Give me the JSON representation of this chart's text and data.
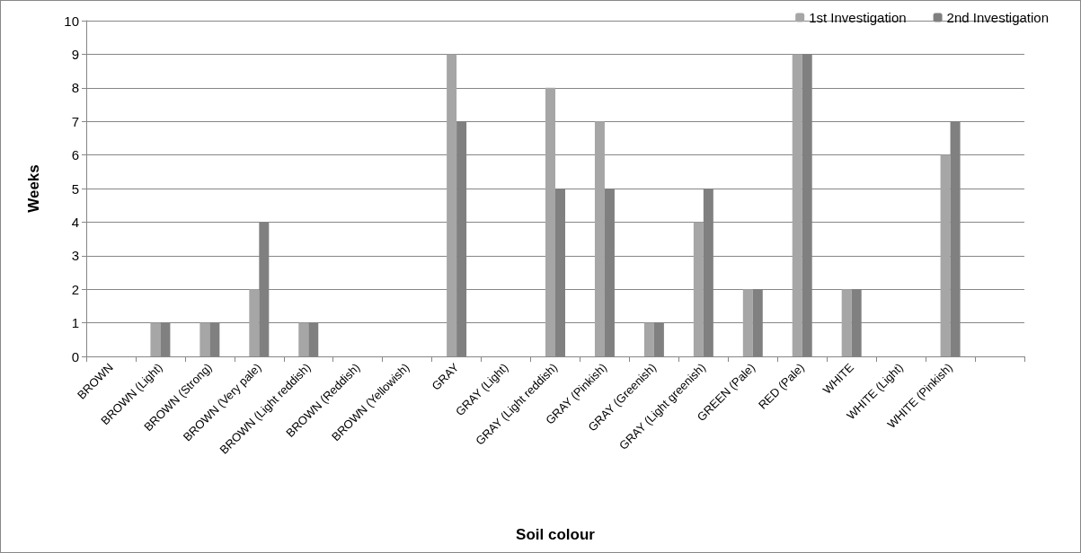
{
  "chart_data": {
    "type": "bar",
    "xlabel": "Soil colour",
    "ylabel": "Weeks",
    "categories": [
      "BROWN",
      "BROWN (Light)",
      "BROWN (Strong)",
      "BROWN (Very pale)",
      "BROWN (Light reddish)",
      "BROWN (Reddish)",
      "BROWN (Yellowish)",
      "GRAY",
      "GRAY (Light)",
      "GRAY (Light reddish)",
      "GRAY (Pinkish)",
      "GRAY (Greenish)",
      "GRAY (Light greenish)",
      "GREEN (Pale)",
      "RED (Pale)",
      "WHITE",
      "WHITE (Light)",
      "WHITE (Pinkish)",
      null
    ],
    "series": [
      {
        "name": "1st Investigation",
        "color": "#a6a6a6",
        "values": [
          0,
          1,
          1,
          2,
          1,
          0,
          0,
          9,
          0,
          8,
          7,
          1,
          4,
          2,
          9,
          2,
          0,
          6,
          0
        ]
      },
      {
        "name": "2nd Investigation",
        "color": "#808080",
        "values": [
          0,
          1,
          1,
          4,
          1,
          0,
          0,
          7,
          0,
          5,
          5,
          1,
          5,
          2,
          9,
          2,
          0,
          7,
          0
        ]
      }
    ],
    "ylim": [
      0,
      10
    ],
    "yticks": [
      0,
      1,
      2,
      3,
      4,
      5,
      6,
      7,
      8,
      9,
      10
    ],
    "grid": "y",
    "legend": "top right"
  }
}
